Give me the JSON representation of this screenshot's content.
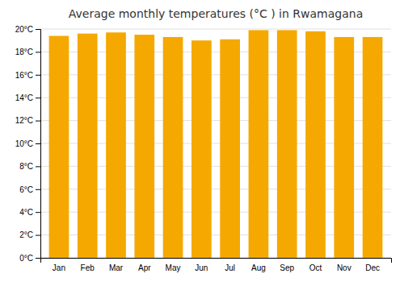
{
  "chart_data": {
    "type": "bar",
    "title": "Average monthly temperatures (°C ) in Rwamagana",
    "categories": [
      "Jan",
      "Feb",
      "Mar",
      "Apr",
      "May",
      "Jun",
      "Jul",
      "Aug",
      "Sep",
      "Oct",
      "Nov",
      "Dec"
    ],
    "values": [
      19.4,
      19.6,
      19.7,
      19.5,
      19.3,
      19.0,
      19.1,
      19.9,
      19.9,
      19.8,
      19.3,
      19.3
    ],
    "color": "#F5A800",
    "ylim": [
      0,
      20
    ],
    "yticks": [
      {
        "value": 0,
        "label": "0°C"
      },
      {
        "value": 2,
        "label": "2°C"
      },
      {
        "value": 4,
        "label": "4°C"
      },
      {
        "value": 6,
        "label": "6°C"
      },
      {
        "value": 8,
        "label": "8°C"
      },
      {
        "value": 10,
        "label": "10°C"
      },
      {
        "value": 12,
        "label": "12°C"
      },
      {
        "value": 14,
        "label": "14°C"
      },
      {
        "value": 16,
        "label": "16°C"
      },
      {
        "value": 18,
        "label": "18°C"
      },
      {
        "value": 20,
        "label": "20°C"
      }
    ],
    "grid": true
  }
}
